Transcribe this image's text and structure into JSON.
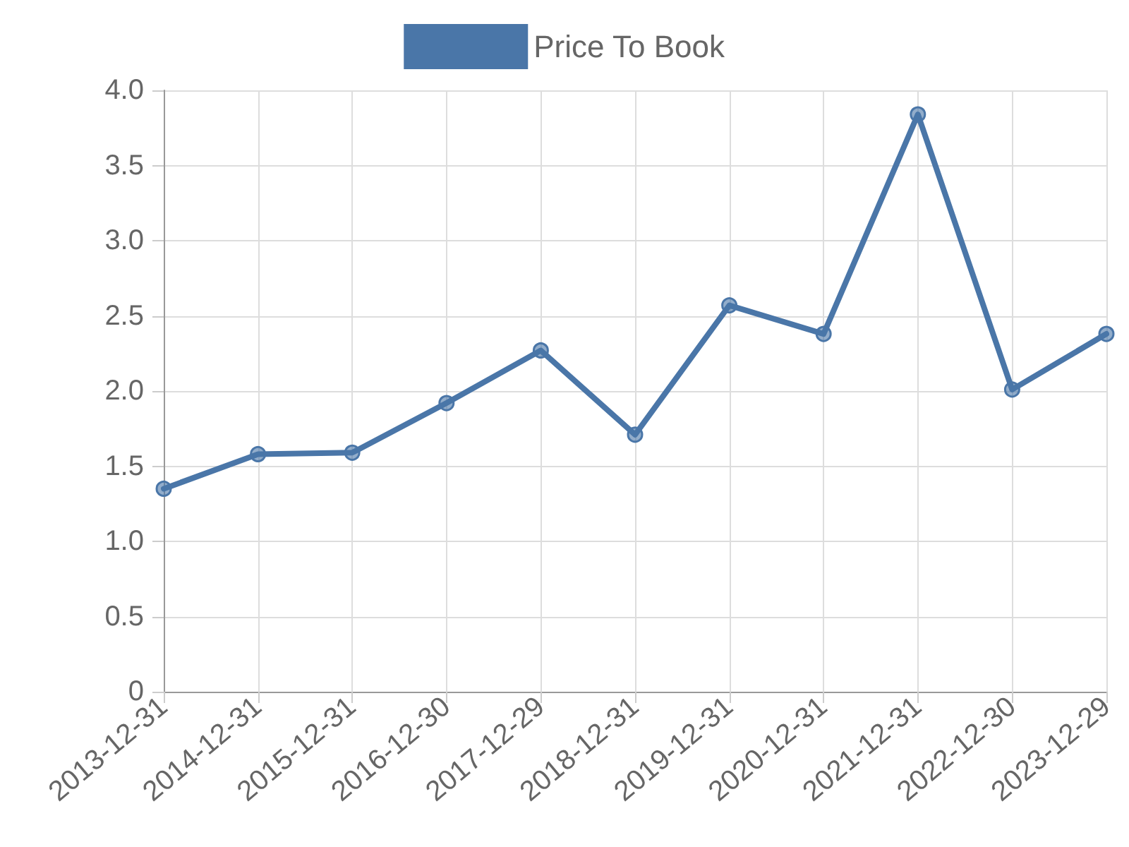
{
  "chart_data": {
    "type": "line",
    "categories": [
      "2013-12-31",
      "2014-12-31",
      "2015-12-31",
      "2016-12-30",
      "2017-12-29",
      "2018-12-31",
      "2019-12-31",
      "2020-12-31",
      "2021-12-31",
      "2022-12-30",
      "2023-12-29"
    ],
    "series": [
      {
        "name": "Price To Book",
        "color": "#4a76a8",
        "values": [
          1.35,
          1.58,
          1.59,
          1.92,
          2.27,
          1.71,
          2.57,
          2.38,
          3.84,
          2.01,
          2.38
        ]
      }
    ],
    "ylim": [
      0,
      4
    ],
    "yticks": [
      {
        "value": 0,
        "label": "0"
      },
      {
        "value": 0.5,
        "label": "0.5"
      },
      {
        "value": 1,
        "label": "1.0"
      },
      {
        "value": 1.5,
        "label": "1.5"
      },
      {
        "value": 2,
        "label": "2.0"
      },
      {
        "value": 2.5,
        "label": "2.5"
      },
      {
        "value": 3,
        "label": "3.0"
      },
      {
        "value": 3.5,
        "label": "3.5"
      },
      {
        "value": 4,
        "label": "4.0"
      }
    ],
    "grid": true,
    "legend": "top",
    "marker": "circle",
    "line_style": "solid"
  }
}
